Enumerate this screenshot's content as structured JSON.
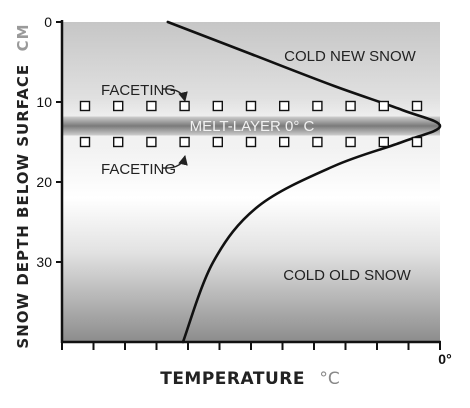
{
  "chart_data": {
    "type": "line",
    "xlabel": "TEMPERATURE",
    "xlabel_unit": "°C",
    "ylabel": "SNOW DEPTH BELOW SURFACE",
    "ylabel_unit": "CM",
    "y_ticks": [
      "0",
      "10",
      "20",
      "30"
    ],
    "y_tick_values": [
      0,
      10,
      20,
      30
    ],
    "x_tick_labels": [
      "0°"
    ],
    "x_tick_count": 13,
    "ylim": [
      0,
      40
    ],
    "y_inverted": true,
    "series": [
      {
        "values": [
          {
            "x": -0.72,
            "y": 0
          },
          {
            "x": -0.5,
            "y": 4
          },
          {
            "x": -0.28,
            "y": 8
          },
          {
            "x": -0.1,
            "y": 11
          },
          {
            "x": 0,
            "y": 13
          },
          {
            "x": -0.1,
            "y": 15
          },
          {
            "x": -0.28,
            "y": 18
          },
          {
            "x": -0.48,
            "y": 23
          },
          {
            "x": -0.6,
            "y": 30
          },
          {
            "x": -0.68,
            "y": 40
          }
        ]
      }
    ],
    "markers": {
      "shape": "square",
      "rows_depth_cm": [
        10.5,
        15
      ],
      "count_per_row": 11
    },
    "bands": {
      "melt_layer_depth_cm": 13
    },
    "annotations": {
      "upper_region": "COLD NEW SNOW",
      "lower_region": "COLD OLD SNOW",
      "melt_layer": "MELT-LAYER 0° C",
      "faceting_top": "FACETING",
      "faceting_bottom": "FACETING"
    },
    "colors": {
      "curve": "#111111",
      "melt_band": "#808080",
      "marker_fill": "#ffffff",
      "marker_stroke": "#111111"
    },
    "grid": false
  }
}
